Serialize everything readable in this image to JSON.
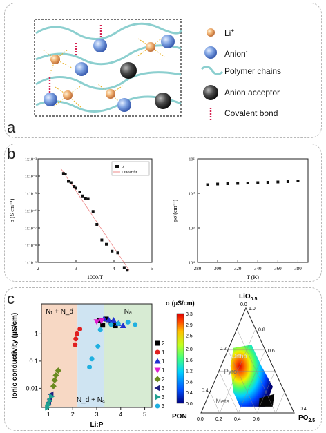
{
  "panels": {
    "a": {
      "label": "a",
      "legend": [
        {
          "key": "li",
          "text": "Li",
          "sup": "+",
          "color": "#e8a060"
        },
        {
          "key": "anion",
          "text": "Anion",
          "sup": "-",
          "color": "#6f93d6"
        },
        {
          "key": "polymer",
          "text": "Polymer chains",
          "sup": "",
          "color": "#8ccfcf"
        },
        {
          "key": "acceptor",
          "text": "Anion acceptor",
          "sup": "",
          "color": "#333333"
        },
        {
          "key": "covalent",
          "text": "Covalent bond",
          "sup": "",
          "color": "#d62050"
        }
      ]
    },
    "b": {
      "label": "b"
    },
    "c": {
      "label": "c"
    }
  },
  "chart_data": [
    {
      "id": "b-left",
      "type": "scatter",
      "xlabel": "1000/T",
      "ylabel": "σ (S cm⁻¹)",
      "xlim": [
        2,
        5
      ],
      "ylim_log10": [
        -9,
        -3
      ],
      "scale_y": "log",
      "xticks": [
        "2",
        "3",
        "4",
        "5"
      ],
      "yticks": [
        "1x10⁻⁹",
        "1x10⁻⁸",
        "1x10⁻⁷",
        "1x10⁻⁶",
        "1x10⁻⁵",
        "1x10⁻⁴",
        "1x10⁻³"
      ],
      "legend": [
        "σ",
        "Linear fit"
      ],
      "series": [
        {
          "name": "σ",
          "x": [
            2.67,
            2.72,
            2.8,
            2.87,
            2.95,
            3.0,
            3.1,
            3.17,
            3.25,
            3.32,
            3.45,
            3.55,
            3.68,
            3.8,
            3.95,
            4.1,
            4.27,
            4.35
          ],
          "log10y": [
            -3.85,
            -3.88,
            -4.3,
            -4.38,
            -4.6,
            -4.7,
            -4.92,
            -5.15,
            -5.28,
            -5.3,
            -6.05,
            -6.8,
            -7.7,
            -7.95,
            -8.35,
            -8.45,
            -9.3,
            -9.45
          ]
        }
      ],
      "fit": {
        "x": [
          2.6,
          4.4
        ],
        "log10y": [
          -3.55,
          -9.45
        ]
      }
    },
    {
      "id": "b-right",
      "type": "scatter",
      "xlabel": "T (K)",
      "ylabel": "pσ (cm⁻³)",
      "xlim": [
        280,
        390
      ],
      "ylim_log10": [
        18,
        21
      ],
      "scale_y": "log",
      "xticks": [
        "280",
        "300",
        "320",
        "340",
        "360",
        "380"
      ],
      "yticks": [
        "10¹⁸",
        "10¹⁹",
        "10²⁰",
        "10²¹"
      ],
      "series": [
        {
          "name": "",
          "x": [
            290,
            300,
            310,
            320,
            330,
            340,
            350,
            360,
            370,
            380
          ],
          "log10y": [
            20.25,
            20.27,
            20.28,
            20.29,
            20.3,
            20.31,
            20.32,
            20.33,
            20.34,
            20.36
          ]
        }
      ]
    },
    {
      "id": "c-left",
      "type": "scatter",
      "xlabel": "Li:P",
      "ylabel": "Ionic conductivity (μS/cm)",
      "xlim": [
        0.7,
        5.3
      ],
      "ylim_log10": [
        -2.7,
        1.1
      ],
      "scale_y": "log",
      "xticks": [
        "1",
        "2",
        "3",
        "4",
        "5"
      ],
      "yticks": [
        "0.01",
        "0.1",
        "1"
      ],
      "regions": [
        {
          "label": "Nₜ + N_d",
          "from": 0.7,
          "to": 2.2,
          "color": "#f7d8c4"
        },
        {
          "label": "N_d + Nₐ",
          "from": 2.2,
          "to": 3.3,
          "color": "#cfe4f2"
        },
        {
          "label": "Nₐ",
          "from": 3.3,
          "to": 5.3,
          "color": "#d7ebd3"
        }
      ],
      "region_labels": [
        "Nₜ + N_d",
        "N_d + Nₐ",
        "Nₐ"
      ],
      "series": [
        {
          "name": "2",
          "color": "#000000",
          "marker": "square",
          "x": [
            3.1,
            3.25,
            3.4,
            3.6,
            3.78
          ],
          "y": [
            3.2,
            2.1,
            3.5,
            2.6,
            2.0
          ]
        },
        {
          "name": "10",
          "color": "#e02020",
          "marker": "circle",
          "x": [
            2.1,
            2.13,
            2.18,
            2.3
          ],
          "y": [
            0.4,
            0.65,
            1.0,
            1.5
          ]
        },
        {
          "name": "12",
          "color": "#2030d0",
          "marker": "triangle",
          "x": [
            3.3,
            3.5,
            3.7,
            3.9,
            4.1
          ],
          "y": [
            3.6,
            3.3,
            3.2,
            2.4,
            2.0
          ]
        },
        {
          "name": "19",
          "color": "#e020d0",
          "marker": "tridown",
          "x": [
            3.0,
            3.2
          ],
          "y": [
            2.8,
            3.0
          ]
        },
        {
          "name": "29",
          "color": "#6a8a20",
          "marker": "diamond",
          "x": [
            1.2,
            1.25,
            1.3,
            1.4
          ],
          "y": [
            0.012,
            0.02,
            0.03,
            0.045
          ]
        },
        {
          "name": "30",
          "color": "#202080",
          "marker": "triangleleft",
          "x": [
            1.0,
            1.05,
            1.1
          ],
          "y": [
            0.003,
            0.004,
            0.006
          ]
        },
        {
          "name": "31",
          "color": "#20a090",
          "marker": "triangleright",
          "x": [
            0.95,
            1.0,
            1.05,
            1.12
          ],
          "y": [
            0.002,
            0.0025,
            0.0035,
            0.005
          ]
        },
        {
          "name": "32",
          "color": "#20b0e0",
          "marker": "circle",
          "x": [
            2.7,
            2.8,
            3.05,
            3.15,
            3.6,
            3.9,
            4.3,
            4.6
          ],
          "y": [
            0.06,
            0.12,
            0.35,
            1.4,
            2.2,
            2.4,
            2.7,
            2.2
          ]
        }
      ]
    },
    {
      "id": "c-right",
      "type": "heatmap",
      "title": "σ (μS/cm)",
      "colorbar_ticks": [
        "0.0",
        "0.4",
        "0.8",
        "1.2",
        "1.6",
        "2.0",
        "2.5",
        "2.9",
        "3.3"
      ],
      "colorbar_range": [
        0.0,
        3.3
      ],
      "vertices": {
        "top": "LiO",
        "top_sub": "0.5",
        "left": "PON",
        "right": "PO",
        "right_sub": "2.5"
      },
      "left_axis_ticks": [
        "0.2",
        "0.4"
      ],
      "right_axis_ticks": [
        "0.0",
        "0.2",
        "0.4",
        "0.6",
        "0.8",
        "1.0"
      ],
      "bottom_axis_ticks": [
        "0.0",
        "0.2",
        "0.4",
        "0.6"
      ],
      "bottom_right_tick": "0.4",
      "region_labels": [
        "Ortho",
        "Pyro",
        "Meta"
      ]
    }
  ]
}
